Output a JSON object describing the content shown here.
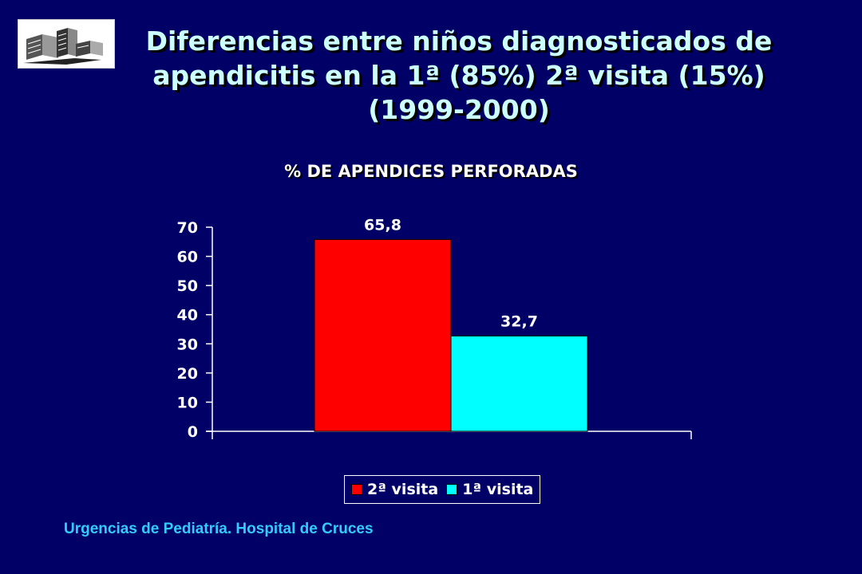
{
  "slide": {
    "title_lines": [
      "Diferencias entre niños diagnosticados de",
      "apendicitis en la 1ª (85%) 2ª visita (15%)",
      "(1999-2000)"
    ],
    "footer": "Urgencias de Pediatría. Hospital de Cruces",
    "logo_icon": "hospital-building-icon"
  },
  "chart_data": {
    "type": "bar",
    "title": "% DE APENDICES PERFORADAS",
    "categories": [
      ""
    ],
    "series": [
      {
        "name": "2ª visita",
        "values": [
          65.8
        ],
        "color": "#ff0000"
      },
      {
        "name": "1ª visita",
        "values": [
          32.7
        ],
        "color": "#00ffff"
      }
    ],
    "data_labels": [
      "65,8",
      "32,7"
    ],
    "yticks": [
      0,
      10,
      20,
      30,
      40,
      50,
      60,
      70
    ],
    "ylim": [
      0,
      70
    ],
    "xlabel": "",
    "ylabel": "",
    "grid": false,
    "legend_position": "bottom"
  }
}
